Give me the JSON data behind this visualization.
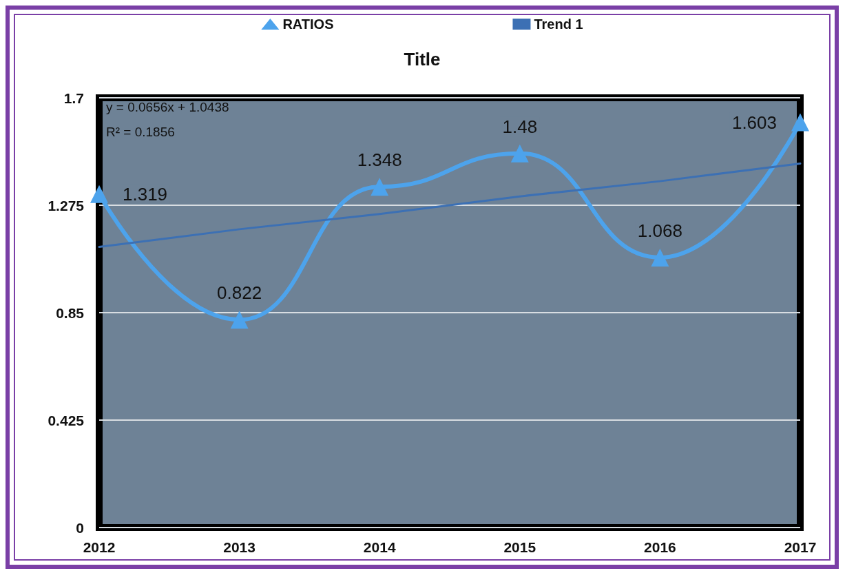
{
  "chart_data": {
    "type": "line",
    "title": "Title",
    "categories": [
      "2012",
      "2013",
      "2014",
      "2015",
      "2016",
      "2017"
    ],
    "series": [
      {
        "name": "RATIOS",
        "color": "#4da3ec",
        "values": [
          1.319,
          0.822,
          1.348,
          1.48,
          1.068,
          1.603
        ],
        "value_labels": [
          "1.319",
          "0.822",
          "1.348",
          "1.48",
          "1.068",
          "1.603"
        ],
        "marker": "triangle"
      },
      {
        "name": "Trend 1",
        "color": "#3c70b4",
        "values": [
          1.11,
          1.18,
          1.24,
          1.31,
          1.37,
          1.44
        ],
        "marker": "none"
      }
    ],
    "ylim": [
      0,
      1.7
    ],
    "yticks": [
      0,
      0.425,
      0.85,
      1.275,
      1.7
    ],
    "grid": "y",
    "legend": "top",
    "annotations": [
      "y = 0.0656x + 1.0438",
      "R² = 0.1856"
    ]
  }
}
